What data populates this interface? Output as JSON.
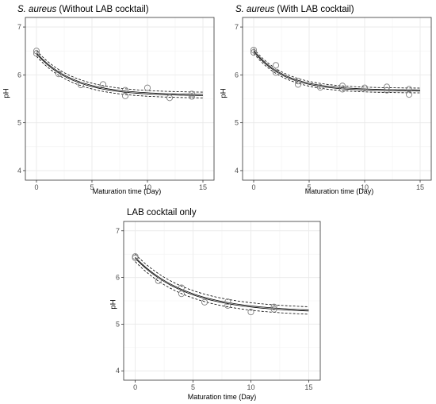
{
  "chart_data": [
    {
      "type": "scatter",
      "title_italic": "S. aureus",
      "title_rest": " (Without LAB cocktail)",
      "xlabel": "Maturation time (Day)",
      "ylabel": "pH",
      "xlim": [
        -1,
        16
      ],
      "ylim": [
        3.8,
        7.2
      ],
      "xticks": [
        0,
        5,
        10,
        15
      ],
      "yticks": [
        4,
        5,
        6,
        7
      ],
      "grid": true,
      "points": [
        {
          "x": 0,
          "y": 6.5
        },
        {
          "x": 0,
          "y": 6.45
        },
        {
          "x": 2,
          "y": 6.02
        },
        {
          "x": 4,
          "y": 5.79
        },
        {
          "x": 6,
          "y": 5.8
        },
        {
          "x": 8,
          "y": 5.68
        },
        {
          "x": 8,
          "y": 5.56
        },
        {
          "x": 10,
          "y": 5.73
        },
        {
          "x": 12,
          "y": 5.52
        },
        {
          "x": 14,
          "y": 5.6
        },
        {
          "x": 14,
          "y": 5.55
        }
      ],
      "fit": {
        "y0": 6.45,
        "yinf": 5.57,
        "k": 0.3,
        "band": 0.06
      }
    },
    {
      "type": "scatter",
      "title_italic": "S. aureus",
      "title_rest": " (With LAB cocktail)",
      "xlabel": "Maturation time (Day)",
      "ylabel": "pH",
      "xlim": [
        -1,
        16
      ],
      "ylim": [
        3.8,
        7.2
      ],
      "xticks": [
        0,
        5,
        10,
        15
      ],
      "yticks": [
        4,
        5,
        6,
        7
      ],
      "grid": true,
      "points": [
        {
          "x": 0,
          "y": 6.52
        },
        {
          "x": 0,
          "y": 6.47
        },
        {
          "x": 2,
          "y": 6.2
        },
        {
          "x": 2,
          "y": 6.05
        },
        {
          "x": 4,
          "y": 5.87
        },
        {
          "x": 4,
          "y": 5.8
        },
        {
          "x": 6,
          "y": 5.74
        },
        {
          "x": 8,
          "y": 5.77
        },
        {
          "x": 8,
          "y": 5.7
        },
        {
          "x": 10,
          "y": 5.73
        },
        {
          "x": 12,
          "y": 5.75
        },
        {
          "x": 12,
          "y": 5.68
        },
        {
          "x": 14,
          "y": 5.7
        },
        {
          "x": 14,
          "y": 5.59
        }
      ],
      "fit": {
        "y0": 6.5,
        "yinf": 5.67,
        "k": 0.35,
        "band": 0.05
      }
    },
    {
      "type": "scatter",
      "title_italic": "",
      "title_rest": "LAB cocktail only",
      "xlabel": "Maturation time (Day)",
      "ylabel": "pH",
      "xlim": [
        -1,
        16
      ],
      "ylim": [
        3.8,
        7.2
      ],
      "xticks": [
        0,
        5,
        10,
        15
      ],
      "yticks": [
        4,
        5,
        6,
        7
      ],
      "grid": true,
      "points": [
        {
          "x": 0,
          "y": 6.45
        },
        {
          "x": 0,
          "y": 6.42
        },
        {
          "x": 2,
          "y": 5.93
        },
        {
          "x": 4,
          "y": 5.78
        },
        {
          "x": 4,
          "y": 5.65
        },
        {
          "x": 6,
          "y": 5.47
        },
        {
          "x": 8,
          "y": 5.48
        },
        {
          "x": 8,
          "y": 5.4
        },
        {
          "x": 10,
          "y": 5.26
        },
        {
          "x": 12,
          "y": 5.37
        },
        {
          "x": 12,
          "y": 5.32
        }
      ],
      "fit": {
        "y0": 6.42,
        "yinf": 5.25,
        "k": 0.22,
        "band": 0.08
      }
    }
  ]
}
